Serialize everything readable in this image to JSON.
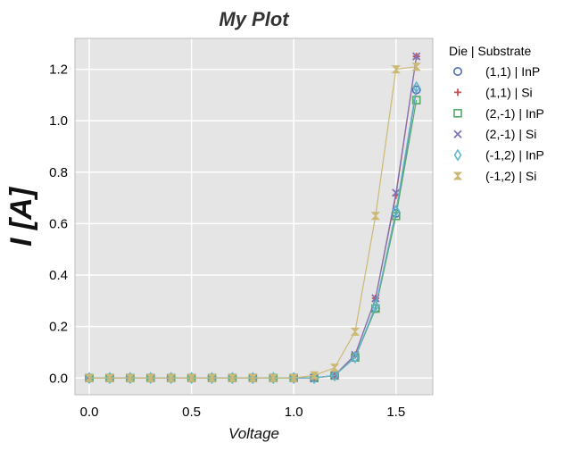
{
  "chart_data": {
    "type": "line",
    "title": "My Plot",
    "xlabel": "Voltage",
    "ylabel": "I [A]",
    "xlim": [
      -0.07,
      1.68
    ],
    "ylim": [
      -0.065,
      1.32
    ],
    "xticks": [
      0.0,
      0.5,
      1.0,
      1.5
    ],
    "xtick_labels": [
      "0.0",
      "0.5",
      "1.0",
      "1.5"
    ],
    "yticks": [
      0.0,
      0.2,
      0.4,
      0.6,
      0.8,
      1.0,
      1.2
    ],
    "ytick_labels": [
      "0.0",
      "0.2",
      "0.4",
      "0.6",
      "0.8",
      "1.0",
      "1.2"
    ],
    "grid": true,
    "legend": {
      "title": "Die | Substrate",
      "placement": "outside-right"
    },
    "x": [
      0.0,
      0.1,
      0.2,
      0.3,
      0.4,
      0.5,
      0.6,
      0.7,
      0.8,
      0.9,
      1.0,
      1.1,
      1.2,
      1.3,
      1.4,
      1.5,
      1.6
    ],
    "series": [
      {
        "name": "(1,1) | InP",
        "marker": "circle",
        "color": "#4C72B0",
        "values": [
          0,
          0,
          0,
          0,
          0,
          0,
          0,
          0,
          0,
          0,
          0,
          0.0,
          0.01,
          0.08,
          0.27,
          0.64,
          1.12
        ]
      },
      {
        "name": "(1,1) | Si",
        "marker": "plus",
        "color": "#C44E52",
        "values": [
          0,
          0,
          0,
          0,
          0,
          0,
          0,
          0,
          0,
          0,
          0,
          0.0,
          0.01,
          0.09,
          0.31,
          0.71,
          1.25
        ]
      },
      {
        "name": "(2,-1) | InP",
        "marker": "square",
        "color": "#55A868",
        "values": [
          0,
          0,
          0,
          0,
          0,
          0,
          0,
          0,
          0,
          0,
          0,
          0.0,
          0.01,
          0.08,
          0.27,
          0.63,
          1.08
        ]
      },
      {
        "name": "(2,-1) | Si",
        "marker": "x",
        "color": "#8172B2",
        "values": [
          0,
          0,
          0,
          0,
          0,
          0,
          0,
          0,
          0,
          0,
          0,
          0.0,
          0.01,
          0.09,
          0.31,
          0.72,
          1.25
        ]
      },
      {
        "name": "(-1,2) | InP",
        "marker": "diamond",
        "color": "#64B5CD",
        "values": [
          0,
          0,
          0,
          0,
          0,
          0,
          0,
          0,
          0,
          0,
          0,
          0.0,
          0.01,
          0.08,
          0.28,
          0.65,
          1.13
        ]
      },
      {
        "name": "(-1,2) | Si",
        "marker": "hourglass",
        "color": "#CCB974",
        "values": [
          0,
          0,
          0,
          0,
          0,
          0,
          0,
          0,
          0,
          0,
          0,
          0.01,
          0.04,
          0.18,
          0.63,
          1.2,
          1.21
        ]
      }
    ]
  }
}
